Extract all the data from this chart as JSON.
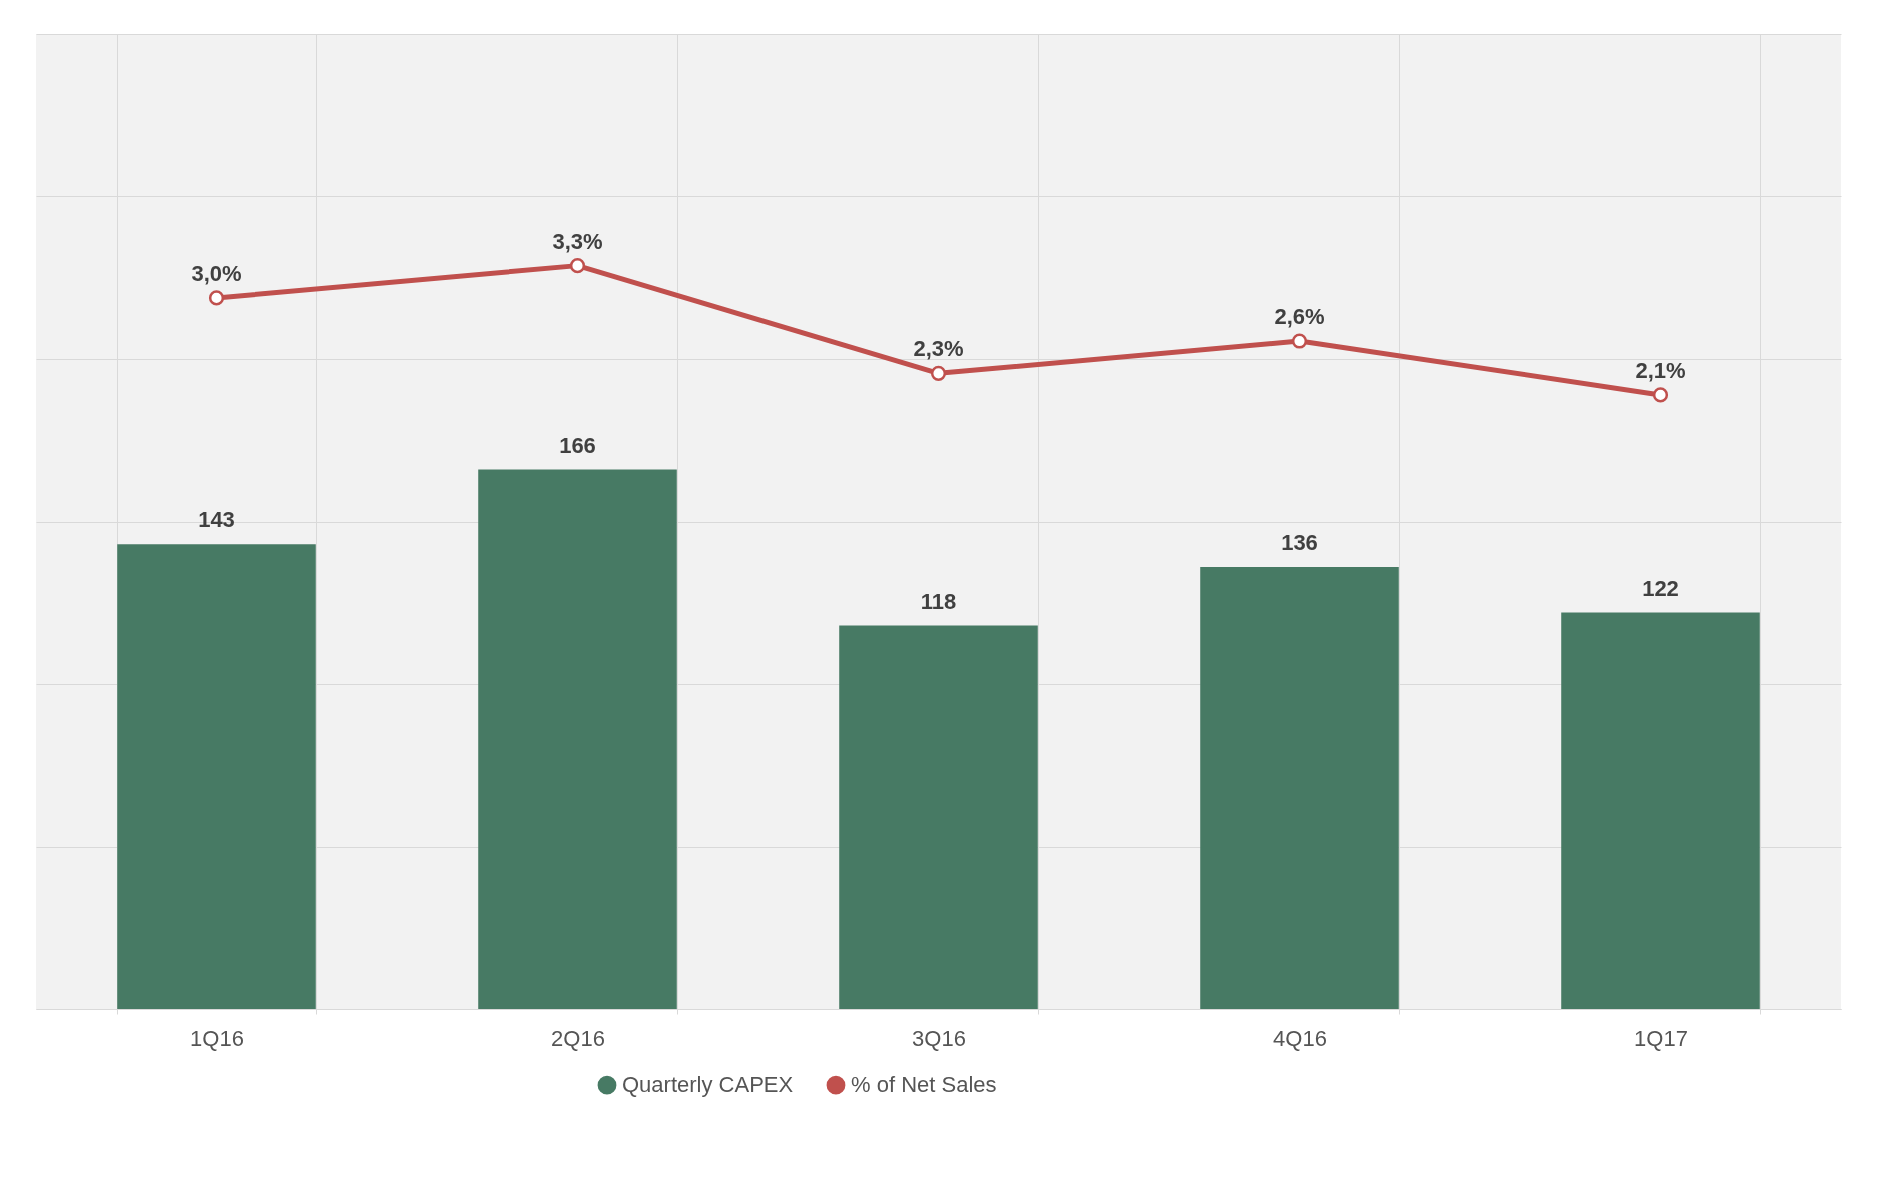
{
  "chart_data": {
    "type": "bar",
    "categories": [
      "1Q16",
      "2Q16",
      "3Q16",
      "4Q16",
      "1Q17"
    ],
    "series": [
      {
        "name": "Quarterly CAPEX",
        "color": "#477a64",
        "values": [
          143,
          166,
          118,
          136,
          122
        ],
        "value_labels": [
          "143",
          "166",
          "118",
          "136",
          "122"
        ]
      },
      {
        "name": "% of Net Sales",
        "type": "line",
        "axis": "y2",
        "color": "#c0504d",
        "values": [
          3.0,
          3.3,
          2.3,
          2.6,
          2.1
        ],
        "value_labels": [
          "3,0%",
          "3,3%",
          "2,3%",
          "2,6%",
          "2,1%"
        ]
      }
    ],
    "ylim": [
      0,
      300
    ],
    "yticks": [
      {
        "value": 0,
        "label": null
      },
      {
        "value": 50,
        "label": null
      },
      {
        "value": 100,
        "label": null
      },
      {
        "value": 150,
        "label": null
      },
      {
        "value": 200,
        "label": null
      },
      {
        "value": 250,
        "label": null
      },
      {
        "value": 300,
        "label": null
      }
    ],
    "y2lim": [
      -3.6,
      5.45
    ],
    "tick_labels": "x",
    "grid": true,
    "legend": "bottom",
    "marker": "circle"
  }
}
